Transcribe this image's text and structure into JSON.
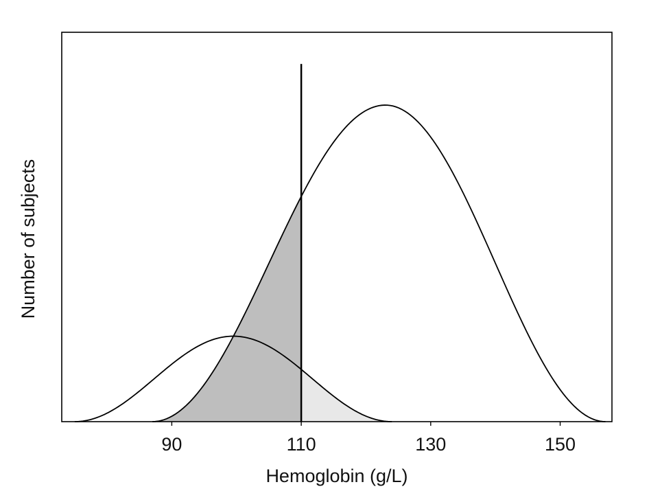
{
  "chart_data": {
    "type": "area",
    "title": "",
    "xlabel": "Hemoglobin (g/L)",
    "ylabel": "Number of subjects",
    "xlim": [
      73,
      158
    ],
    "ylim": [
      0,
      1.23
    ],
    "x_ticks": [
      90,
      110,
      130,
      150
    ],
    "x_tick_labels": [
      "90",
      "110",
      "130",
      "150"
    ],
    "y_ticks": [],
    "grid": false,
    "legend": "none",
    "cutoff": {
      "x": 110,
      "height": 1.13
    },
    "series": [
      {
        "kind": "normal-curve",
        "mean": 99.5,
        "sd": 8,
        "amplitude": 0.27,
        "x_range": [
          75,
          124
        ]
      },
      {
        "kind": "normal-curve",
        "mean": 123,
        "sd": 11,
        "amplitude": 1.0,
        "x_range": [
          87,
          157
        ]
      }
    ],
    "shading": [
      {
        "under_series": 1,
        "x_range": [
          87,
          110
        ],
        "color": "#bebebe"
      },
      {
        "under_series": 0,
        "x_range": [
          110,
          124
        ],
        "color": "#e8e8e8"
      }
    ],
    "colors": {
      "line": "#000000",
      "shade_dark": "#bebebe",
      "shade_light": "#e8e8e8"
    }
  }
}
